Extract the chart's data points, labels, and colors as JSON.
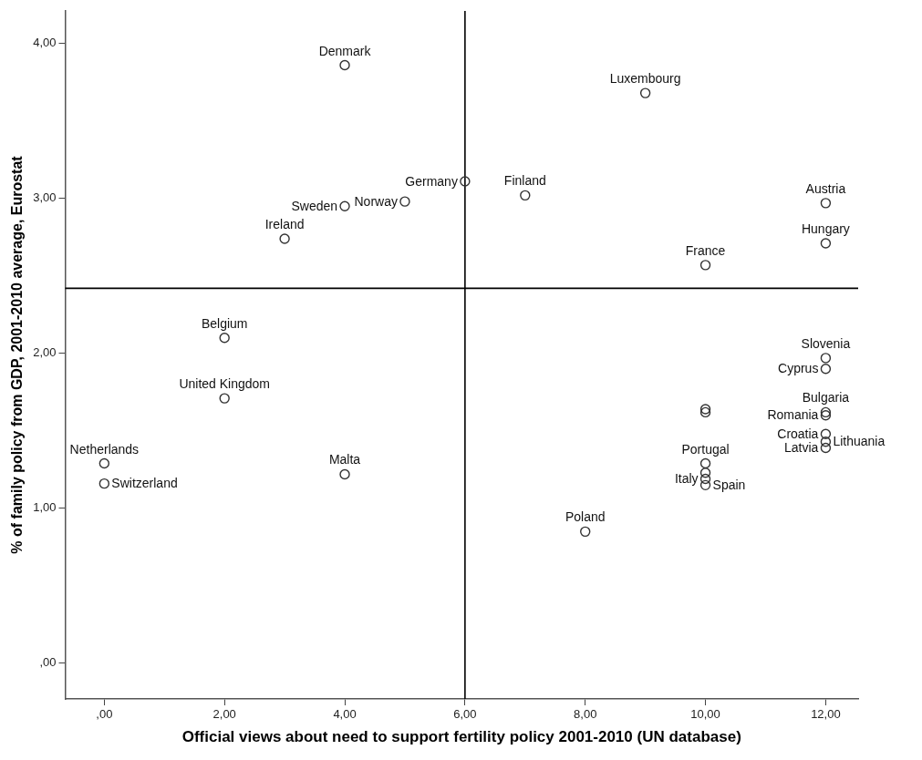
{
  "chart_data": {
    "type": "scatter",
    "xlabel": "Official views about need to support fertility policy 2001-2010 (UN database)",
    "ylabel": "% of family policy from GDP, 2001-2010 average, Eurostat",
    "x": [
      4,
      9,
      6,
      7,
      5,
      4,
      12,
      3,
      12,
      10,
      2,
      12,
      12,
      2,
      10,
      10,
      12,
      12,
      12,
      12,
      12,
      10,
      10,
      10,
      10,
      8,
      0,
      0,
      4
    ],
    "series": [
      {
        "color": "#333333",
        "values": [
          3.86,
          3.68,
          3.11,
          3.02,
          2.98,
          2.95,
          2.97,
          2.74,
          2.71,
          2.57,
          2.1,
          1.97,
          1.9,
          1.71,
          1.64,
          1.62,
          1.62,
          1.6,
          1.48,
          1.43,
          1.39,
          1.29,
          1.23,
          1.19,
          1.15,
          0.85,
          1.29,
          1.16,
          1.22
        ]
      }
    ],
    "annotations": [
      {
        "text": "Denmark",
        "x": 4,
        "y": 3.86
      },
      {
        "text": "Luxembourg",
        "x": 9,
        "y": 3.68
      },
      {
        "text": "Germany",
        "x": 6,
        "y": 3.11
      },
      {
        "text": "Finland",
        "x": 7,
        "y": 3.02
      },
      {
        "text": "Norway",
        "x": 5,
        "y": 2.98
      },
      {
        "text": "Sweden",
        "x": 4,
        "y": 2.95
      },
      {
        "text": "Austria",
        "x": 12,
        "y": 2.97
      },
      {
        "text": "Ireland",
        "x": 3,
        "y": 2.74
      },
      {
        "text": "Hungary",
        "x": 12,
        "y": 2.71
      },
      {
        "text": "France",
        "x": 10,
        "y": 2.57
      },
      {
        "text": "Belgium",
        "x": 2,
        "y": 2.1
      },
      {
        "text": "Slovenia",
        "x": 12,
        "y": 1.97
      },
      {
        "text": "Cyprus",
        "x": 12,
        "y": 1.9
      },
      {
        "text": "United Kingdom",
        "x": 2,
        "y": 1.71
      },
      {
        "text": "Bulgaria",
        "x": 12,
        "y": 1.62
      },
      {
        "text": "Romania",
        "x": 12,
        "y": 1.6
      },
      {
        "text": "Croatia",
        "x": 12,
        "y": 1.48
      },
      {
        "text": "Lithuania",
        "x": 12,
        "y": 1.43
      },
      {
        "text": "Latvia",
        "x": 12,
        "y": 1.39
      },
      {
        "text": "Portugal",
        "x": 10,
        "y": 1.29
      },
      {
        "text": "Italy",
        "x": 10,
        "y": 1.19
      },
      {
        "text": "Spain",
        "x": 10,
        "y": 1.15
      },
      {
        "text": "Poland",
        "x": 8,
        "y": 0.85
      },
      {
        "text": "Netherlands",
        "x": 0,
        "y": 1.29
      },
      {
        "text": "Switzerland",
        "x": 0,
        "y": 1.16
      },
      {
        "text": "Malta",
        "x": 4,
        "y": 1.22
      }
    ],
    "ref_lines": [
      {
        "axis": "x",
        "value": 6,
        "color": "#000000"
      },
      {
        "axis": "y",
        "value": 2.42,
        "color": "#000000"
      }
    ],
    "xlim": [
      -0.65,
      12.54
    ],
    "ylim": [
      -0.23,
      4.21
    ],
    "xticks": [
      {
        "value": 0,
        "label": ",00"
      },
      {
        "value": 2,
        "label": "2,00"
      },
      {
        "value": 4,
        "label": "4,00"
      },
      {
        "value": 6,
        "label": "6,00"
      },
      {
        "value": 8,
        "label": "8,00"
      },
      {
        "value": 10,
        "label": "10,00"
      },
      {
        "value": 12,
        "label": "12,00"
      }
    ],
    "yticks": [
      {
        "value": 0,
        "label": ",00"
      },
      {
        "value": 1,
        "label": "1,00"
      },
      {
        "value": 2,
        "label": "2,00"
      },
      {
        "value": 3,
        "label": "3,00"
      },
      {
        "value": 4,
        "label": "4,00"
      }
    ],
    "grid": false,
    "legend": false,
    "marker": "circle"
  }
}
